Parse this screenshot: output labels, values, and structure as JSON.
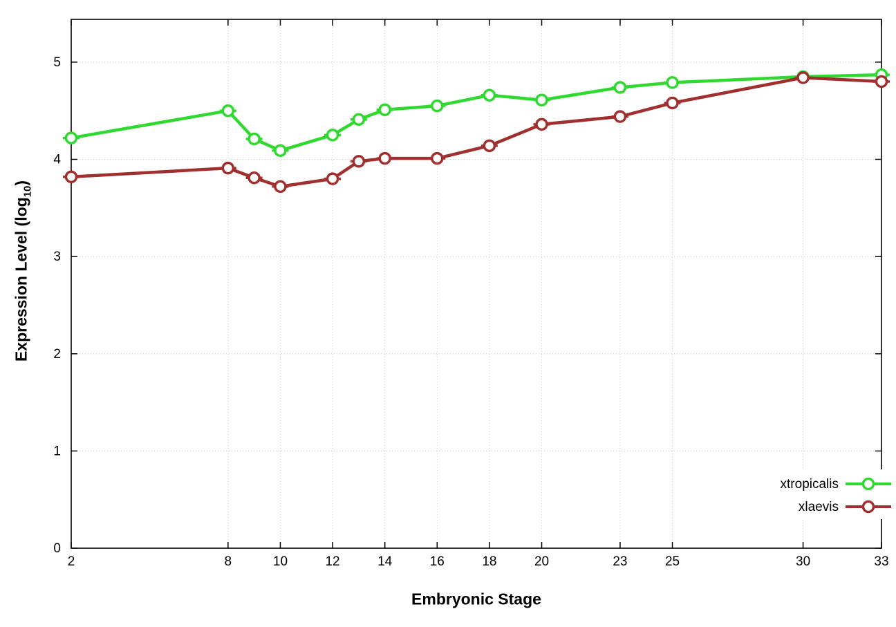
{
  "chart_data": {
    "type": "line",
    "title": "",
    "xlabel": "Embryonic Stage",
    "ylabel": {
      "prefix": "Expression Level (log",
      "sub": "10",
      "suffix": ")"
    },
    "x_ticks": [
      2,
      8,
      10,
      12,
      14,
      16,
      18,
      20,
      23,
      25,
      30,
      33
    ],
    "y_ticks": [
      0,
      1,
      2,
      3,
      4,
      5
    ],
    "xlim": [
      2,
      33
    ],
    "ylim": [
      0,
      5.44
    ],
    "grid": true,
    "legend_position": "right-lower",
    "colors": {
      "xtropicalis": "#30d930",
      "xlaevis": "#a03030",
      "axis": "#000000",
      "grid": "#c8c8c8",
      "background": "#ffffff"
    },
    "series": [
      {
        "name": "xtropicalis",
        "x": [
          2,
          8,
          9,
          10,
          12,
          13,
          14,
          16,
          18,
          20,
          23,
          25,
          30,
          33
        ],
        "y": [
          4.22,
          4.5,
          4.21,
          4.09,
          4.25,
          4.41,
          4.51,
          4.55,
          4.66,
          4.61,
          4.74,
          4.79,
          4.85,
          4.87
        ]
      },
      {
        "name": "xlaevis",
        "x": [
          2,
          8,
          9,
          10,
          12,
          13,
          14,
          16,
          18,
          20,
          23,
          25,
          30,
          33
        ],
        "y": [
          3.82,
          3.91,
          3.81,
          3.72,
          3.8,
          3.98,
          4.01,
          4.01,
          4.14,
          4.36,
          4.44,
          4.58,
          4.84,
          4.8
        ]
      }
    ]
  }
}
